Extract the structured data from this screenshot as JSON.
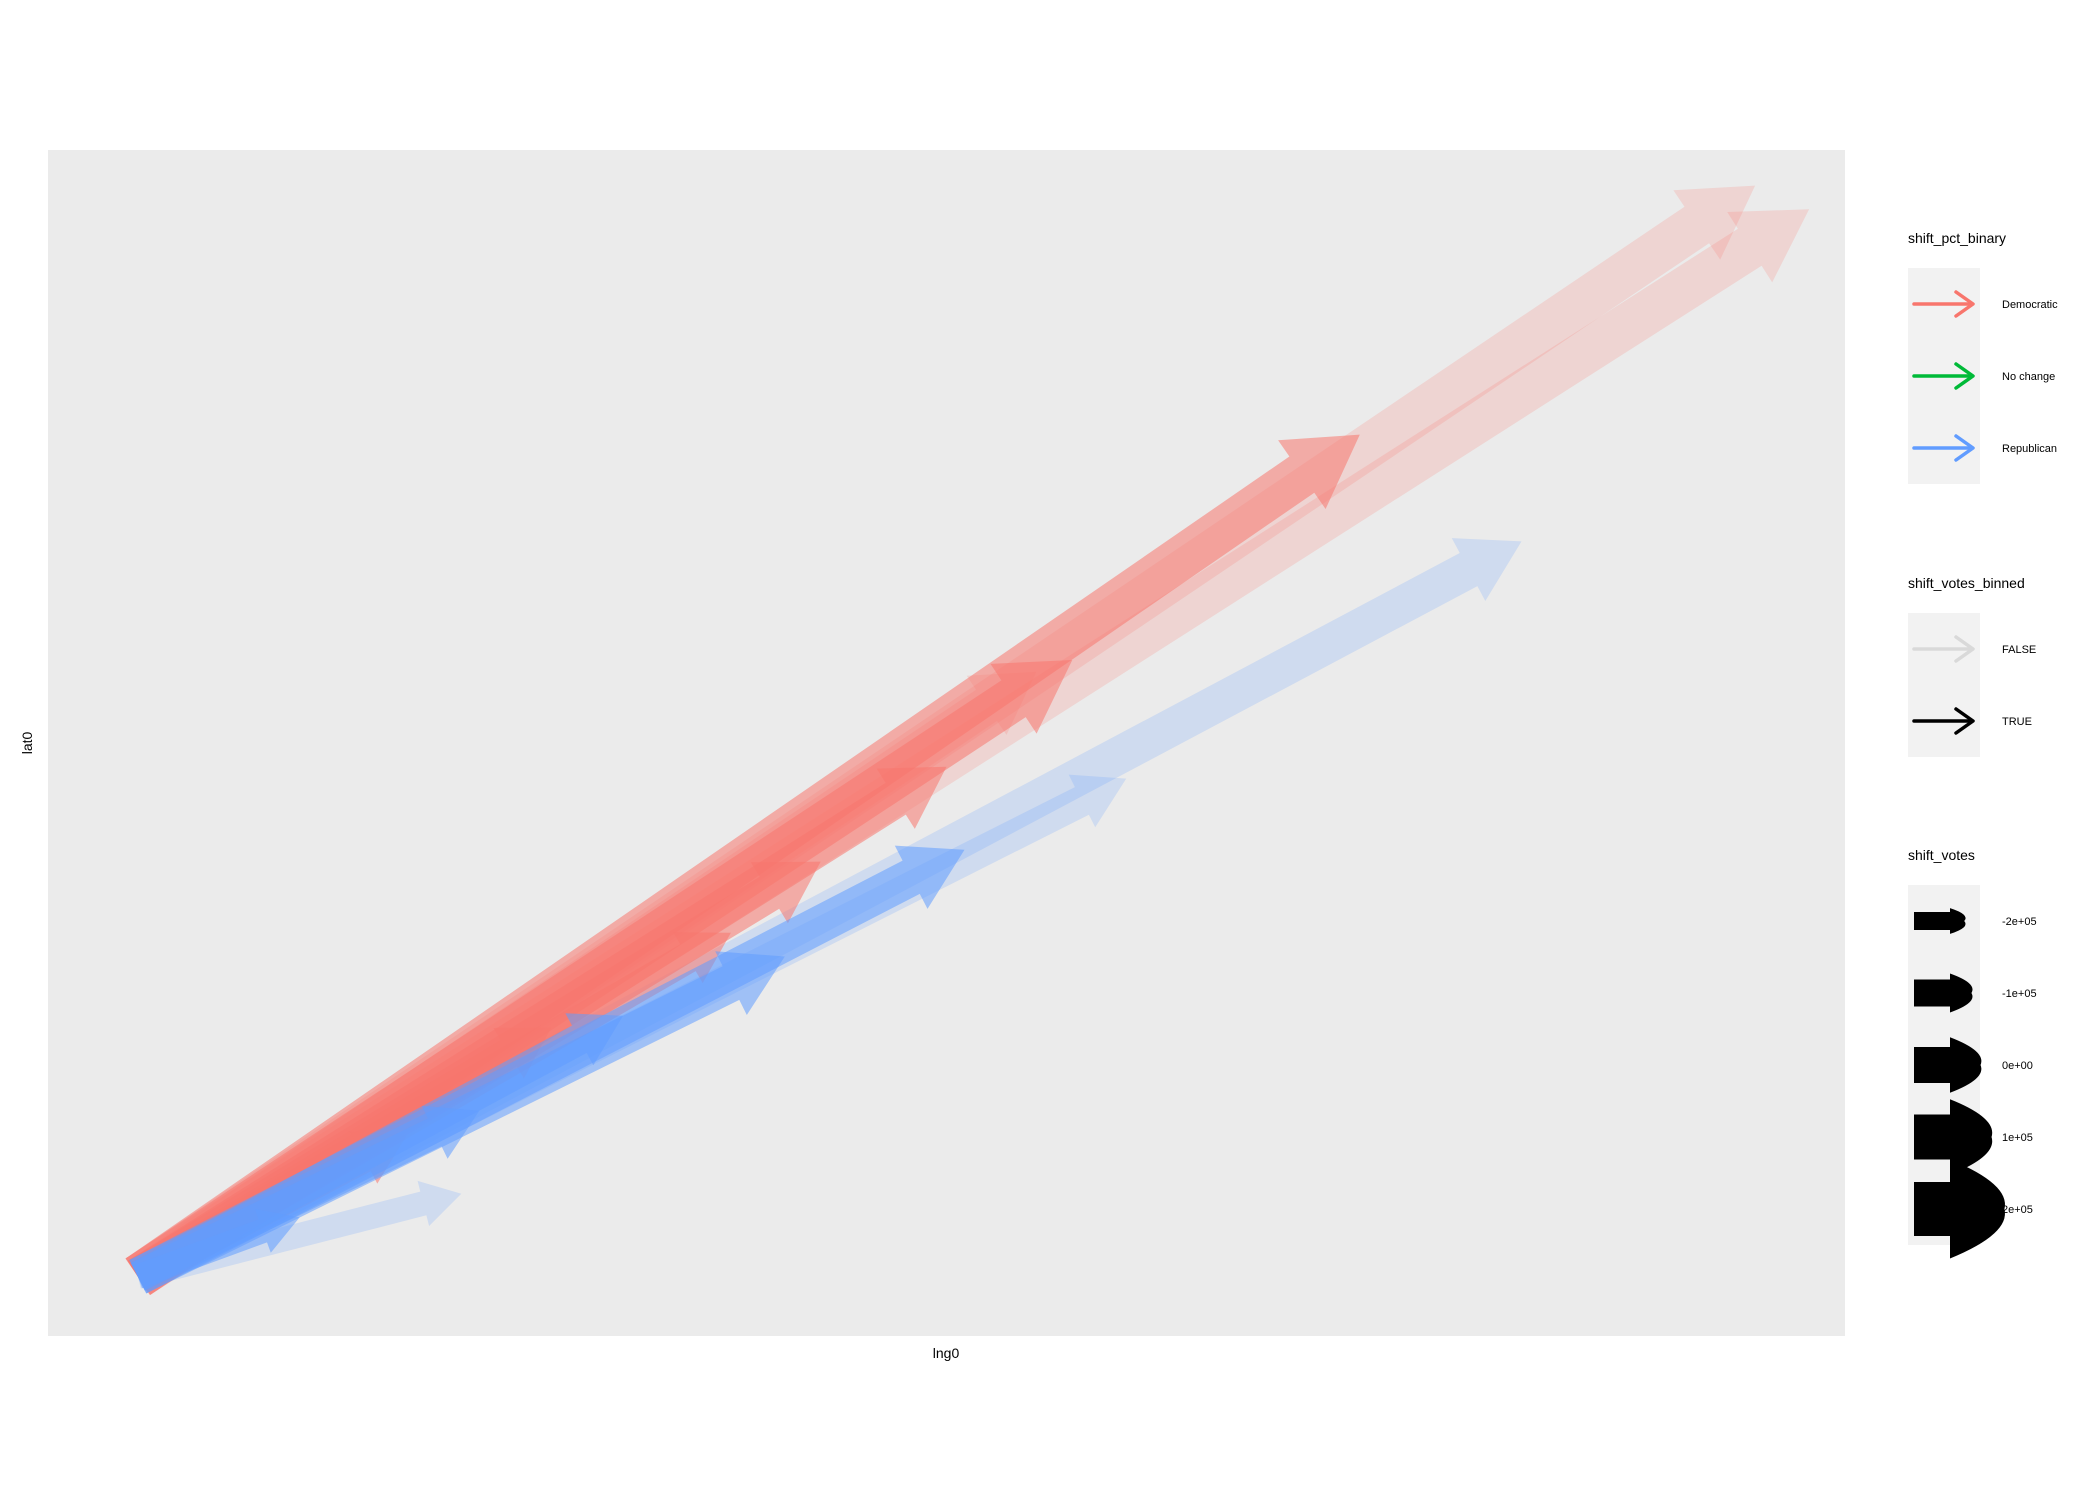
{
  "chart_data": {
    "type": "arrow-map",
    "title": "",
    "xlabel": "lng0",
    "ylabel": "lat0",
    "grid": false,
    "legend_placement": "right",
    "colors": {
      "panel_background": "#ebebeb",
      "legend_key_background": "#f2f2f2",
      "democratic": "#f8766d",
      "no_change": "#00ba38",
      "republican": "#619cff",
      "false_alpha": "#d9d9d9",
      "true_alpha": "#000000"
    },
    "xlim": [
      0,
      1
    ],
    "ylim": [
      0,
      1
    ],
    "origin": {
      "x": 0.05,
      "y": 0.05
    },
    "series": [
      {
        "party": "Democratic",
        "shift_votes_binned": true,
        "shift_votes": 200000,
        "end": {
          "x": 0.73,
          "y": 0.76
        }
      },
      {
        "party": "Democratic",
        "shift_votes_binned": true,
        "shift_votes": 200000,
        "end": {
          "x": 0.57,
          "y": 0.57
        }
      },
      {
        "party": "Democratic",
        "shift_votes_binned": true,
        "shift_votes": 150000,
        "end": {
          "x": 0.43,
          "y": 0.4
        }
      },
      {
        "party": "Democratic",
        "shift_votes_binned": true,
        "shift_votes": 150000,
        "end": {
          "x": 0.5,
          "y": 0.48
        }
      },
      {
        "party": "Democratic",
        "shift_votes_binned": true,
        "shift_votes": 100000,
        "end": {
          "x": 0.38,
          "y": 0.34
        }
      },
      {
        "party": "Democratic",
        "shift_votes_binned": true,
        "shift_votes": 100000,
        "end": {
          "x": 0.28,
          "y": 0.26
        }
      },
      {
        "party": "Democratic",
        "shift_votes_binned": true,
        "shift_votes": 100000,
        "end": {
          "x": 0.2,
          "y": 0.17
        }
      },
      {
        "party": "Democratic",
        "shift_votes_binned": false,
        "shift_votes": 200000,
        "end": {
          "x": 0.95,
          "y": 0.97
        }
      },
      {
        "party": "Democratic",
        "shift_votes_binned": false,
        "shift_votes": 200000,
        "end": {
          "x": 0.98,
          "y": 0.95
        }
      },
      {
        "party": "Democratic",
        "shift_votes_binned": false,
        "shift_votes": 150000,
        "end": {
          "x": 0.55,
          "y": 0.56
        }
      },
      {
        "party": "Republican",
        "shift_votes_binned": true,
        "shift_votes": 150000,
        "end": {
          "x": 0.51,
          "y": 0.41
        }
      },
      {
        "party": "Republican",
        "shift_votes_binned": true,
        "shift_votes": 150000,
        "end": {
          "x": 0.41,
          "y": 0.32
        }
      },
      {
        "party": "Republican",
        "shift_votes_binned": true,
        "shift_votes": 100000,
        "end": {
          "x": 0.32,
          "y": 0.27
        }
      },
      {
        "party": "Republican",
        "shift_votes_binned": true,
        "shift_votes": 100000,
        "end": {
          "x": 0.24,
          "y": 0.19
        }
      },
      {
        "party": "Republican",
        "shift_votes_binned": true,
        "shift_votes": 50000,
        "end": {
          "x": 0.14,
          "y": 0.1
        }
      },
      {
        "party": "Republican",
        "shift_votes_binned": false,
        "shift_votes": 150000,
        "end": {
          "x": 0.82,
          "y": 0.67
        }
      },
      {
        "party": "Republican",
        "shift_votes_binned": false,
        "shift_votes": 100000,
        "end": {
          "x": 0.6,
          "y": 0.47
        }
      },
      {
        "party": "Republican",
        "shift_votes_binned": false,
        "shift_votes": 50000,
        "end": {
          "x": 0.23,
          "y": 0.12
        }
      }
    ],
    "legends": [
      {
        "title": "shift_pct_binary",
        "type": "color",
        "entries": [
          {
            "label": "Democratic",
            "color": "#f8766d"
          },
          {
            "label": "No change",
            "color": "#00ba38"
          },
          {
            "label": "Republican",
            "color": "#619cff"
          }
        ]
      },
      {
        "title": "shift_votes_binned",
        "type": "alpha",
        "entries": [
          {
            "label": "FALSE",
            "color": "#d9d9d9"
          },
          {
            "label": "TRUE",
            "color": "#000000"
          }
        ]
      },
      {
        "title": "shift_votes",
        "type": "size",
        "entries": [
          {
            "label": "-2e+05",
            "value": -200000
          },
          {
            "label": "-1e+05",
            "value": -100000
          },
          {
            "label": "0e+00",
            "value": 0
          },
          {
            "label": "1e+05",
            "value": 100000
          },
          {
            "label": "2e+05",
            "value": 200000
          }
        ]
      }
    ]
  }
}
